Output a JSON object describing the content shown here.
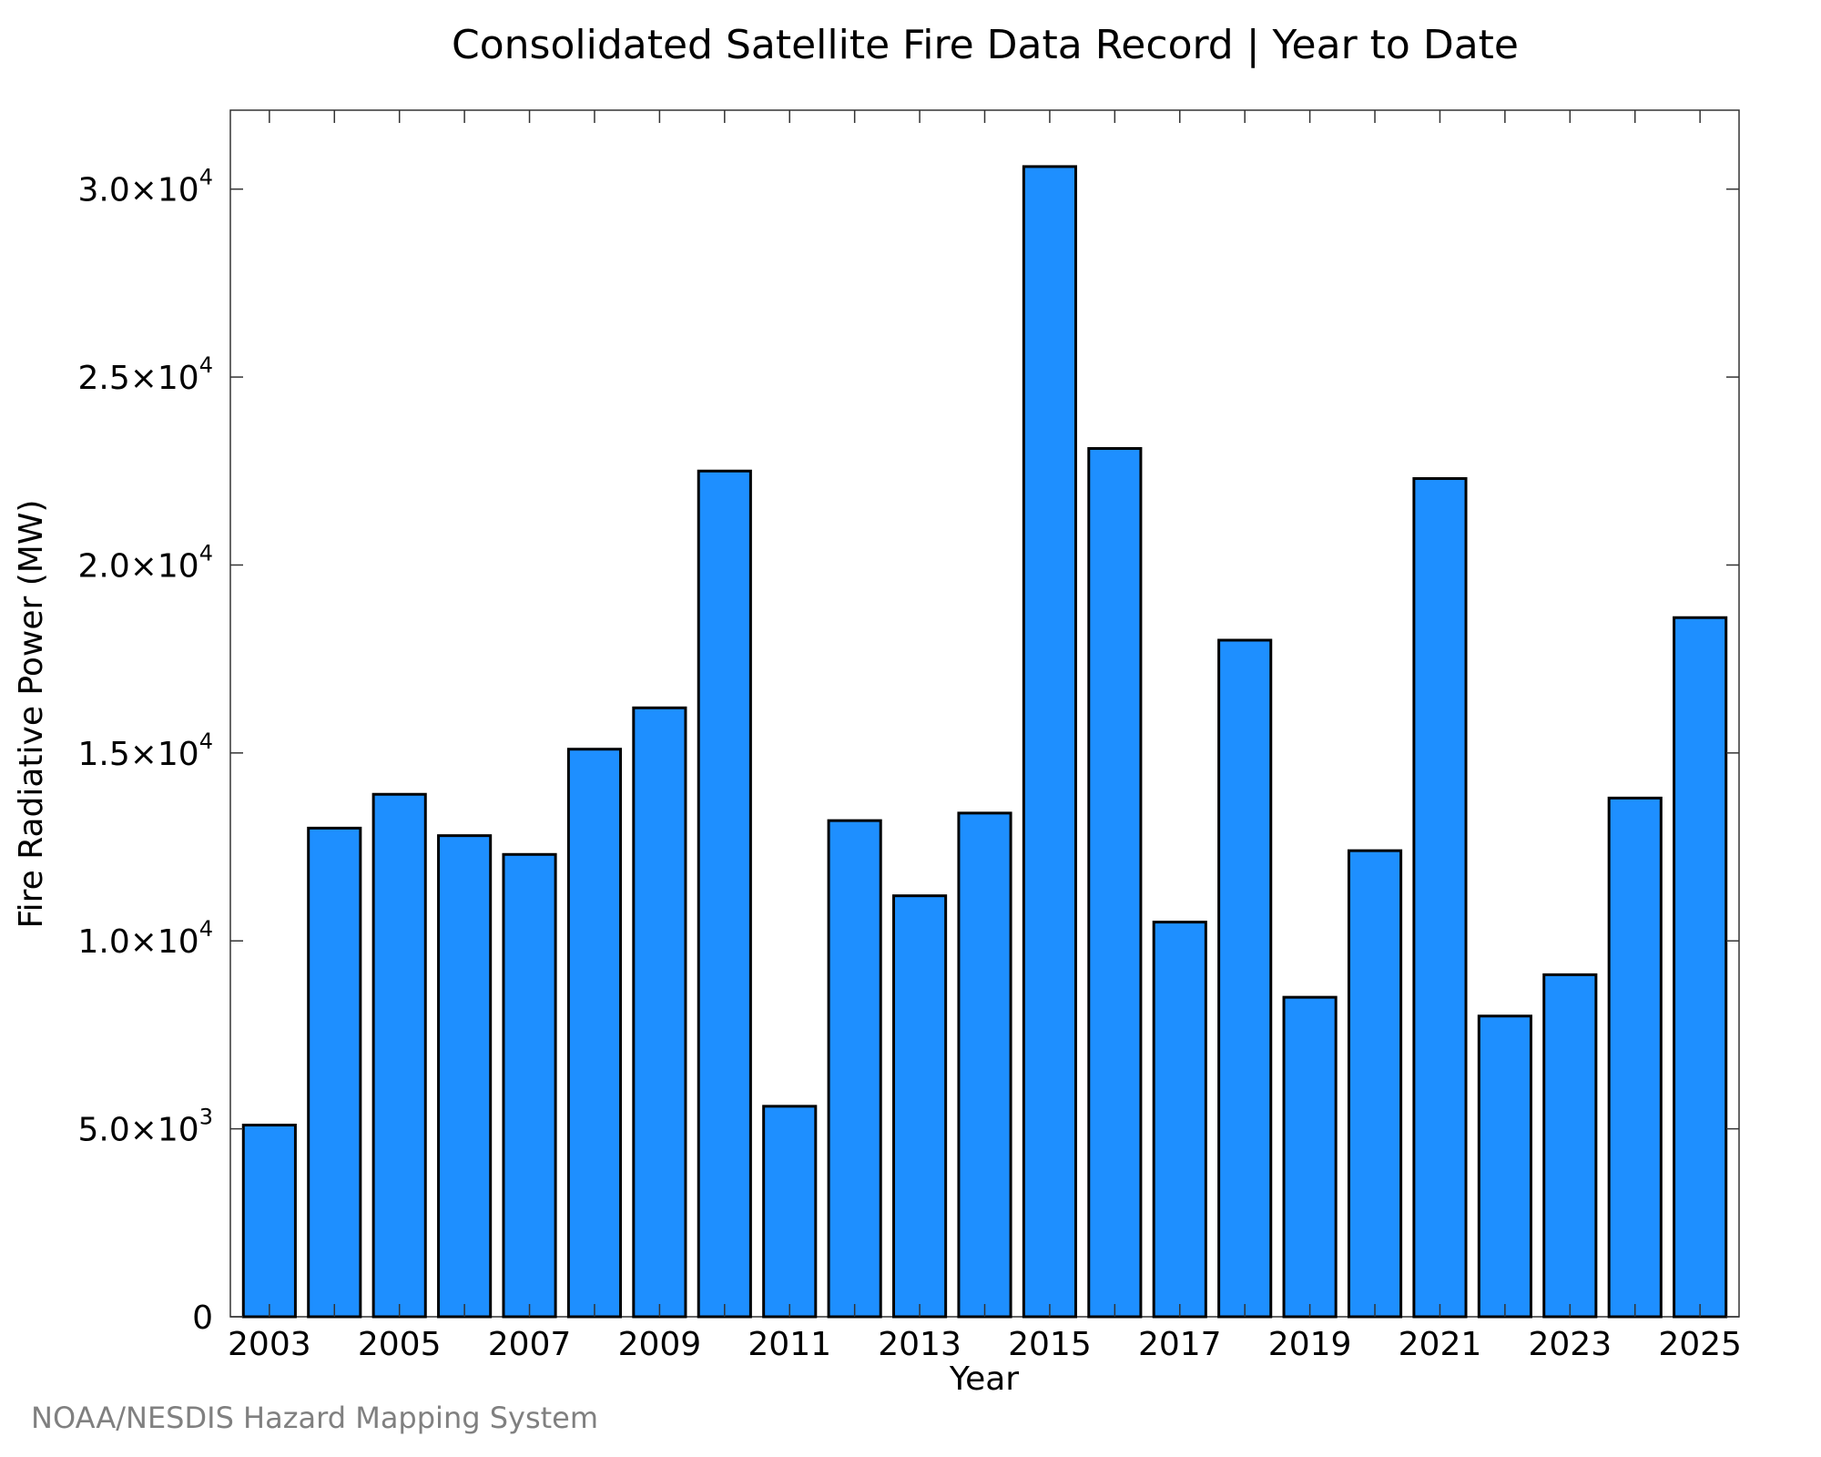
{
  "chart_data": {
    "type": "bar",
    "title": "Consolidated Satellite Fire Data Record | Year to Date",
    "xlabel": "Year",
    "ylabel": "Fire Radiative Power (MW)",
    "credit": "NOAA/NESDIS Hazard Mapping System",
    "bar_color": "#1E8FFF",
    "categories": [
      2003,
      2004,
      2005,
      2006,
      2007,
      2008,
      2009,
      2010,
      2011,
      2012,
      2013,
      2014,
      2015,
      2016,
      2017,
      2018,
      2019,
      2020,
      2021,
      2022,
      2023,
      2024,
      2025
    ],
    "values": [
      5100,
      13000,
      13900,
      12800,
      12300,
      15100,
      16200,
      22500,
      5600,
      13200,
      11200,
      13400,
      30600,
      23100,
      10500,
      18000,
      8500,
      12400,
      22300,
      8000,
      9100,
      13800,
      18600
    ],
    "x_tick_labels": [
      "2003",
      "2005",
      "2007",
      "2009",
      "2011",
      "2013",
      "2015",
      "2017",
      "2019",
      "2021",
      "2023",
      "2025"
    ],
    "y_ticks": [
      {
        "value": 0,
        "mantissa": "0",
        "exp": ""
      },
      {
        "value": 5000,
        "mantissa": "5.0×10",
        "exp": "3"
      },
      {
        "value": 10000,
        "mantissa": "1.0×10",
        "exp": "4"
      },
      {
        "value": 15000,
        "mantissa": "1.5×10",
        "exp": "4"
      },
      {
        "value": 20000,
        "mantissa": "2.0×10",
        "exp": "4"
      },
      {
        "value": 25000,
        "mantissa": "2.5×10",
        "exp": "4"
      },
      {
        "value": 30000,
        "mantissa": "3.0×10",
        "exp": "4"
      }
    ],
    "ylim": [
      0,
      32100
    ],
    "xlim": [
      2002.4,
      2025.6
    ],
    "grid": false,
    "legend": "none"
  }
}
